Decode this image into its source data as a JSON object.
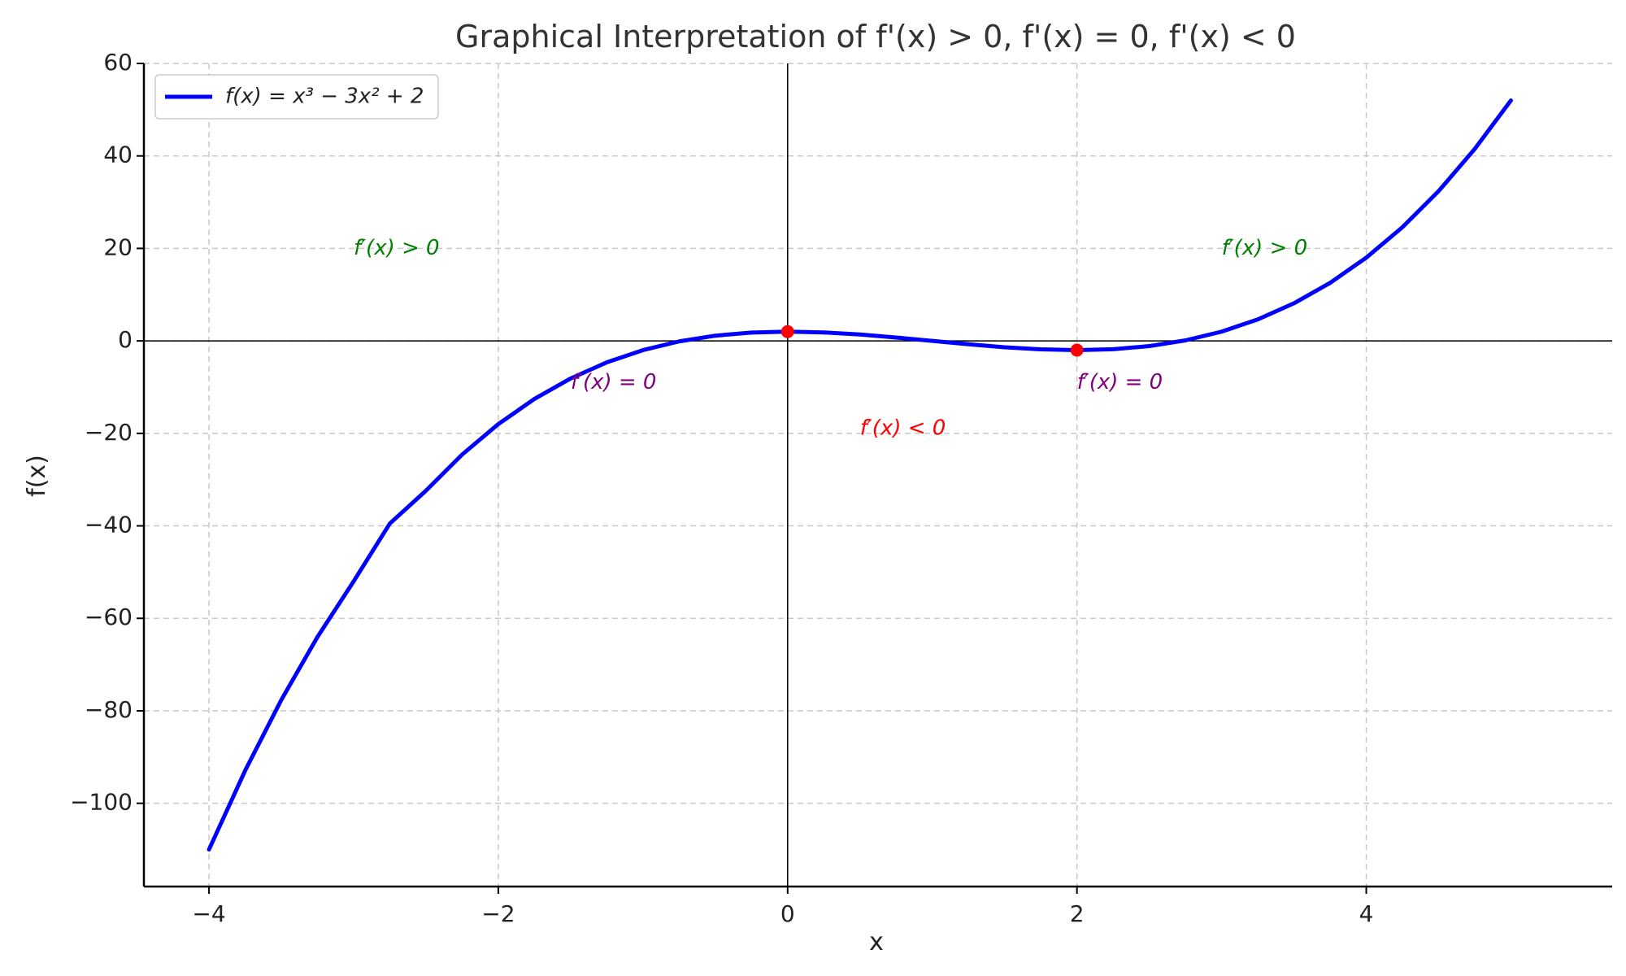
{
  "chart_data": {
    "type": "line",
    "title": "Graphical Interpretation of f'(x) > 0, f'(x) = 0, f'(x) < 0",
    "xlabel": "x",
    "ylabel": "f(x)",
    "xlim": [
      -4.45,
      5.7
    ],
    "ylim": [
      -118,
      60
    ],
    "grid": true,
    "legend_position": "top-left",
    "x_ticks": [
      -4,
      -2,
      0,
      2,
      4
    ],
    "x_tick_labels": [
      "−4",
      "−2",
      "0",
      "2",
      "4"
    ],
    "y_ticks": [
      60,
      40,
      20,
      0,
      -20,
      -40,
      -60,
      -80,
      -100
    ],
    "y_tick_labels": [
      "60",
      "40",
      "20",
      "0",
      "−20",
      "−40",
      "−60",
      "−80",
      "−100"
    ],
    "series": [
      {
        "name": "f(x) = x³ − 3x² + 2",
        "color": "#0000ff",
        "x": [
          -4,
          -3.75,
          -3.5,
          -3.25,
          -3,
          -2.75,
          -2.5,
          -2.25,
          -2,
          -1.75,
          -1.5,
          -1.25,
          -1,
          -0.75,
          -0.5,
          -0.25,
          0,
          0.25,
          0.5,
          0.75,
          1,
          1.25,
          1.5,
          1.75,
          2,
          2.25,
          2.5,
          2.75,
          3,
          3.25,
          3.5,
          3.75,
          4,
          4.25,
          4.5,
          4.75,
          5
        ],
        "y": [
          -110,
          -92.92,
          -77.63,
          -64.02,
          -52,
          -39.5,
          -32.38,
          -24.58,
          -18,
          -12.55,
          -8.13,
          -4.64,
          -2,
          -0.11,
          1.13,
          1.8,
          2,
          1.83,
          1.38,
          0.73,
          0,
          -0.73,
          -1.38,
          -1.83,
          -2,
          -1.8,
          -1.13,
          0.11,
          2,
          4.64,
          8.13,
          12.55,
          18,
          24.58,
          32.38,
          41.5,
          52
        ]
      }
    ],
    "critical_points": {
      "color": "#ff0000",
      "x": [
        0,
        2
      ],
      "y": [
        2,
        -2
      ]
    },
    "annotations": [
      {
        "text": "f′(x) > 0",
        "x": -3,
        "y": 20,
        "color": "#008000"
      },
      {
        "text": "f′(x) > 0",
        "x": 3,
        "y": 20,
        "color": "#008000"
      },
      {
        "text": "f′(x) = 0",
        "x": -1.5,
        "y": -9,
        "color": "#800080"
      },
      {
        "text": "f′(x) = 0",
        "x": 2,
        "y": -9,
        "color": "#800080"
      },
      {
        "text": "f′(x) < 0",
        "x": 0.5,
        "y": -19,
        "color": "#ff0000"
      }
    ]
  }
}
